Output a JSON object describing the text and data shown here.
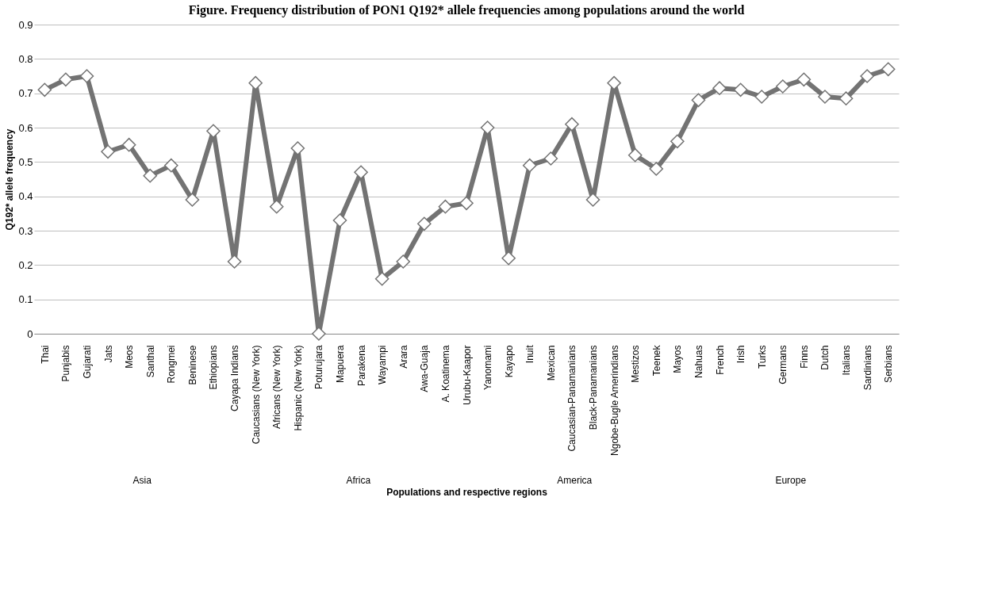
{
  "chart_data": {
    "type": "line",
    "title": "Figure. Frequency distribution of PON1 Q192* allele frequencies among populations around the world",
    "xlabel": "Populations and respective regions",
    "ylabel": "Q192* allele frequency",
    "categories": [
      "Thai",
      "Punjabis",
      "Gujarati",
      "Jats",
      "Meos",
      "Santhal",
      "Rongmei",
      "Beninese",
      "Ethiopians",
      "Cayapa Indians",
      "Caucasians (New York)",
      "Africans (New York)",
      "Hispanic (New York)",
      "Poturujara",
      "Mapuera",
      "Parakena",
      "Wayampi",
      "Arara",
      "Awa-Guaja",
      "A.    Koatinema",
      "Urubu-Kaapor",
      "Yanomami",
      "Kayapo",
      "Inuit",
      "Mexican",
      "Caucasian-Panamanians",
      "Black-Panamanians",
      "Ngobe-Bugle Amerindians",
      "Mestizos",
      "Teenek",
      "Mayos",
      "Nahuas",
      "French",
      "Irish",
      "Turks",
      "Germans",
      "Finns",
      "Dutch",
      "Italians",
      "Sardinians",
      "Serbians"
    ],
    "series": [
      {
        "color": "#737373",
        "values": [
          0.71,
          0.74,
          0.75,
          0.53,
          0.55,
          0.46,
          0.49,
          0.39,
          0.59,
          0.21,
          0.73,
          0.37,
          0.54,
          0.0,
          0.33,
          0.47,
          0.16,
          0.21,
          0.32,
          0.37,
          0.38,
          0.6,
          0.22,
          0.49,
          0.51,
          0.61,
          0.39,
          0.73,
          0.52,
          0.48,
          0.56,
          0.68,
          0.715,
          0.71,
          0.69,
          0.72,
          0.74,
          0.69,
          0.685,
          0.75,
          0.77
        ]
      }
    ],
    "annotations": [
      "Asia",
      "Africa",
      "America",
      "Europe"
    ],
    "ylim": [
      0,
      0.9
    ],
    "yticks": [
      {
        "value": 0,
        "label": "0"
      },
      0.1,
      0.2,
      0.3,
      0.4,
      0.5,
      0.6,
      0.7,
      0.8,
      0.9
    ],
    "grid": "y",
    "marker": "diamond",
    "line_style": "solid"
  }
}
